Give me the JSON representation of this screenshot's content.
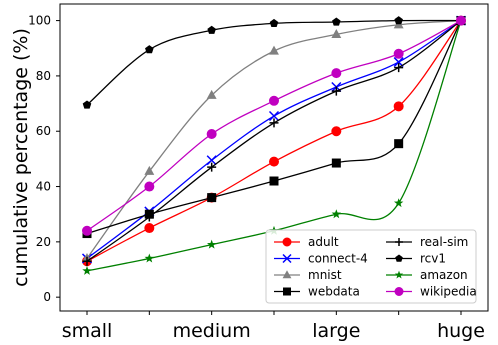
{
  "chart_data": {
    "type": "line",
    "title": "",
    "xlabel": "",
    "ylabel": "cumulative percentage (%)",
    "categories": [
      "small",
      "",
      "medium",
      "",
      "large",
      "",
      "huge"
    ],
    "x_tick_labels": [
      "small",
      "medium",
      "large",
      "huge"
    ],
    "y_ticks": [
      0,
      20,
      40,
      60,
      80,
      100
    ],
    "ylim": [
      -5,
      106
    ],
    "grid": false,
    "legend_position": "lower-right",
    "series": [
      {
        "name": "adult",
        "color": "#ff0000",
        "marker": "circle",
        "values": [
          13,
          25,
          36,
          49,
          60,
          69,
          100
        ]
      },
      {
        "name": "connect-4",
        "color": "#0000ff",
        "marker": "x",
        "values": [
          14,
          31,
          49.5,
          65.5,
          76,
          85,
          100
        ]
      },
      {
        "name": "mnist",
        "color": "#808080",
        "marker": "triangle",
        "values": [
          14,
          45.5,
          73,
          89,
          95,
          98.5,
          100
        ]
      },
      {
        "name": "webdata",
        "color": "#000000",
        "marker": "square",
        "values": [
          23,
          30,
          36,
          42,
          48.5,
          55.5,
          100
        ]
      },
      {
        "name": "real-sim",
        "color": "#000000",
        "marker": "plus",
        "values": [
          13,
          29,
          47,
          63,
          74.5,
          83,
          100
        ]
      },
      {
        "name": "rcv1",
        "color": "#000000",
        "marker": "pentagon",
        "values": [
          69.5,
          89.5,
          96.5,
          99,
          99.5,
          100,
          100
        ]
      },
      {
        "name": "amazon",
        "color": "#008000",
        "marker": "star",
        "values": [
          9.5,
          14,
          19,
          24,
          30,
          34,
          100
        ]
      },
      {
        "name": "wikipedia",
        "color": "#c000c0",
        "marker": "circle",
        "values": [
          24,
          40,
          59,
          71,
          81,
          88,
          100
        ]
      }
    ]
  }
}
